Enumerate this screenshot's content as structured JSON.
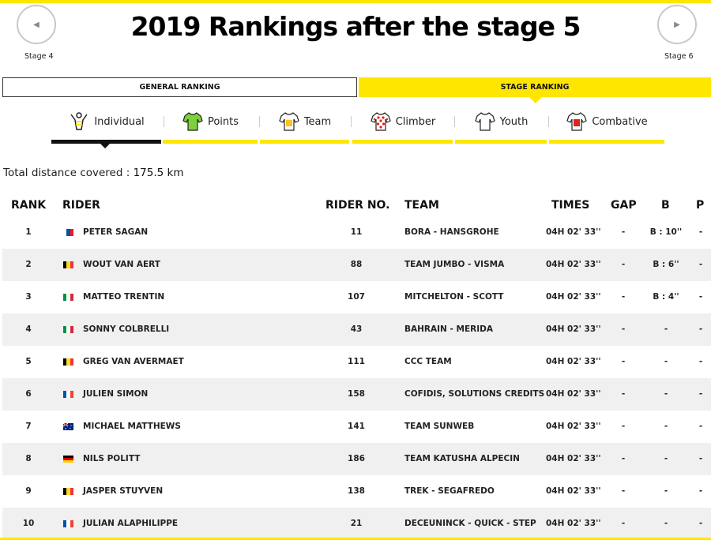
{
  "page": {
    "title": "2019 Rankings after the stage 5",
    "prev_stage": "Stage 4",
    "next_stage": "Stage 6",
    "prev_arrow": "◀",
    "next_arrow": "▶"
  },
  "ranking_tabs": [
    {
      "label": "GENERAL RANKING",
      "active": false
    },
    {
      "label": "STAGE RANKING",
      "active": true
    }
  ],
  "category_tabs": [
    {
      "label": "Individual",
      "icon": "individual-icon",
      "active": true
    },
    {
      "label": "Points",
      "icon": "green-jersey-icon",
      "color": "#7dd13a"
    },
    {
      "label": "Team",
      "icon": "team-jersey-icon",
      "color": "#ffd21f"
    },
    {
      "label": "Climber",
      "icon": "polka-dot-jersey-icon",
      "color": "#e2231a"
    },
    {
      "label": "Youth",
      "icon": "white-jersey-icon",
      "color": "#ffffff"
    },
    {
      "label": "Combative",
      "icon": "red-number-jersey-icon",
      "color": "#e2231a"
    }
  ],
  "distance": {
    "label": "Total distance covered : ",
    "value": "175.5 km"
  },
  "table": {
    "headers": {
      "rank": "RANK",
      "rider": "RIDER",
      "rider_no": "RIDER NO.",
      "team": "TEAM",
      "times": "TIMES",
      "gap": "GAP",
      "b": "B",
      "p": "P"
    },
    "rows": [
      {
        "rank": "1",
        "flag": "slovakia-flag",
        "rider": "PETER SAGAN",
        "no": "11",
        "team": "BORA - HANSGROHE",
        "time": "04H 02' 33''",
        "gap": "-",
        "b": "B : 10''",
        "p": "-"
      },
      {
        "rank": "2",
        "flag": "belgium-flag",
        "rider": "WOUT VAN AERT",
        "no": "88",
        "team": "TEAM JUMBO - VISMA",
        "time": "04H 02' 33''",
        "gap": "-",
        "b": "B : 6''",
        "p": "-"
      },
      {
        "rank": "3",
        "flag": "italy-flag",
        "rider": "MATTEO TRENTIN",
        "no": "107",
        "team": "MITCHELTON - SCOTT",
        "time": "04H 02' 33''",
        "gap": "-",
        "b": "B : 4''",
        "p": "-"
      },
      {
        "rank": "4",
        "flag": "italy-flag",
        "rider": "SONNY COLBRELLI",
        "no": "43",
        "team": "BAHRAIN - MERIDA",
        "time": "04H 02' 33''",
        "gap": "-",
        "b": "-",
        "p": "-"
      },
      {
        "rank": "5",
        "flag": "belgium-flag",
        "rider": "GREG VAN AVERMAET",
        "no": "111",
        "team": "CCC TEAM",
        "time": "04H 02' 33''",
        "gap": "-",
        "b": "-",
        "p": "-"
      },
      {
        "rank": "6",
        "flag": "france-flag",
        "rider": "JULIEN SIMON",
        "no": "158",
        "team": "COFIDIS, SOLUTIONS CREDITS",
        "time": "04H 02' 33''",
        "gap": "-",
        "b": "-",
        "p": "-"
      },
      {
        "rank": "7",
        "flag": "australia-flag",
        "rider": "MICHAEL MATTHEWS",
        "no": "141",
        "team": "TEAM SUNWEB",
        "time": "04H 02' 33''",
        "gap": "-",
        "b": "-",
        "p": "-"
      },
      {
        "rank": "8",
        "flag": "germany-flag",
        "rider": "NILS POLITT",
        "no": "186",
        "team": "TEAM KATUSHA ALPECIN",
        "time": "04H 02' 33''",
        "gap": "-",
        "b": "-",
        "p": "-"
      },
      {
        "rank": "9",
        "flag": "belgium-flag",
        "rider": "JASPER STUYVEN",
        "no": "138",
        "team": "TREK - SEGAFREDO",
        "time": "04H 02' 33''",
        "gap": "-",
        "b": "-",
        "p": "-"
      },
      {
        "rank": "10",
        "flag": "france-flag",
        "rider": "JULIAN ALAPHILIPPE",
        "no": "21",
        "team": "DECEUNINCK - QUICK - STEP",
        "time": "04H 02' 33''",
        "gap": "-",
        "b": "-",
        "p": "-"
      }
    ]
  },
  "colors": {
    "accent_yellow": "#ffe600",
    "row_alt": "#f0f0f0"
  }
}
